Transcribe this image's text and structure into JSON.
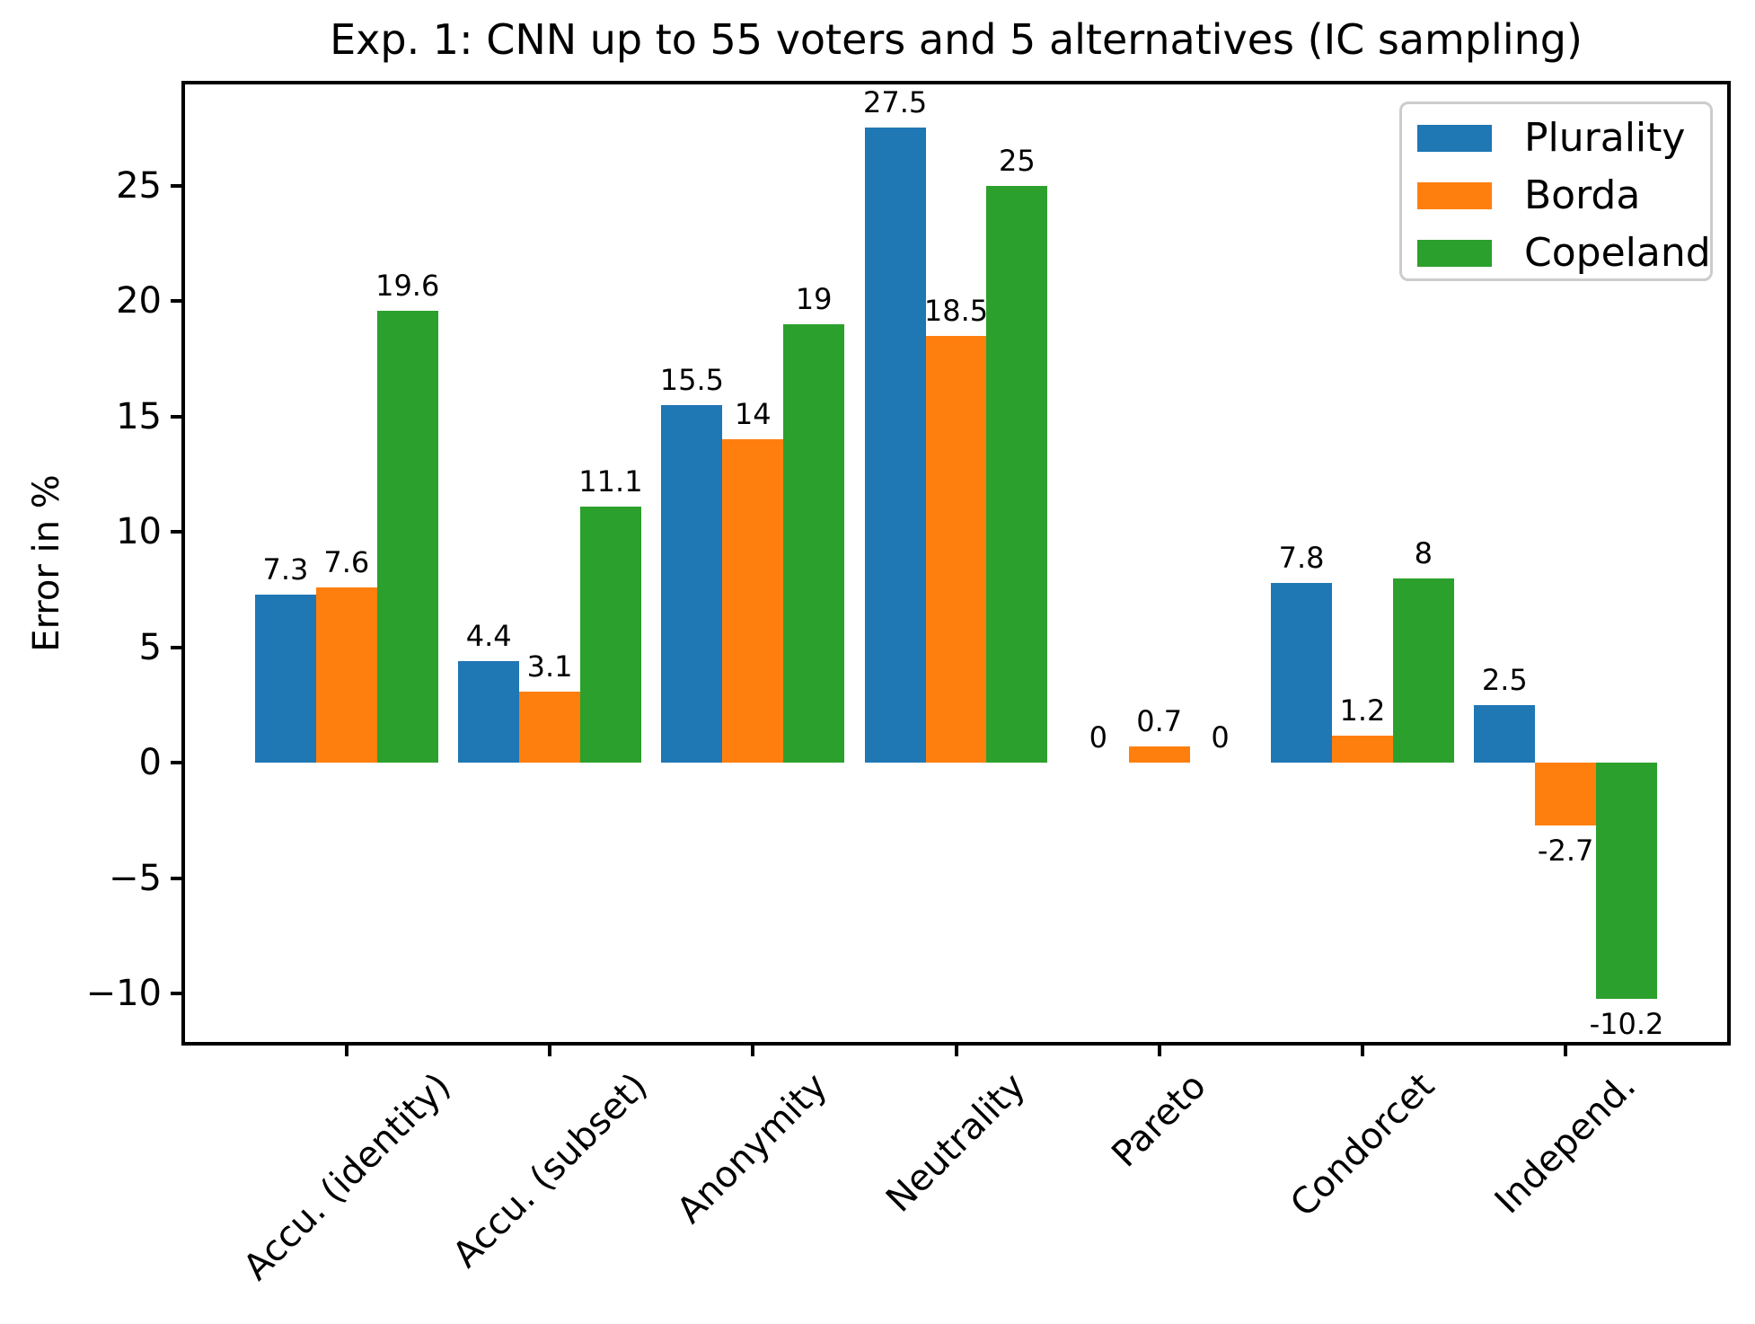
{
  "chart_data": {
    "type": "bar",
    "title": "Exp. 1: CNN up to 55 voters and 5 alternatives (IC sampling)",
    "ylabel": "Error in %",
    "xlabel": "",
    "categories": [
      "Accu. (identity)",
      "Accu. (subset)",
      "Anonymity",
      "Neutrality",
      "Pareto",
      "Condorcet",
      "Independ."
    ],
    "series": [
      {
        "name": "Plurality",
        "color": "#1f77b4",
        "values": [
          7.3,
          4.4,
          15.5,
          27.5,
          0,
          7.8,
          2.5
        ],
        "labels": [
          "7.3",
          "4.4",
          "15.5",
          "27.5",
          "0",
          "7.8",
          "2.5"
        ]
      },
      {
        "name": "Borda",
        "color": "#ff7f0e",
        "values": [
          7.6,
          3.1,
          14,
          18.5,
          0.7,
          1.2,
          -2.7
        ],
        "labels": [
          "7.6",
          "3.1",
          "14",
          "18.5",
          "0.7",
          "1.2",
          "-2.7"
        ]
      },
      {
        "name": "Copeland",
        "color": "#2ca02c",
        "values": [
          19.6,
          11.1,
          19,
          25,
          0,
          8,
          -10.2
        ],
        "labels": [
          "19.6",
          "11.1",
          "19",
          "25",
          "0",
          "8",
          "-10.2"
        ]
      }
    ],
    "yticks": [
      {
        "label": "25",
        "value": 25
      },
      {
        "label": "20",
        "value": 20
      },
      {
        "label": "15",
        "value": 15
      },
      {
        "label": "10",
        "value": 10
      },
      {
        "label": "5",
        "value": 5
      },
      {
        "label": "0",
        "value": 0
      },
      {
        "label": "−5",
        "value": -5
      },
      {
        "label": "−10",
        "value": -10
      }
    ],
    "ylim": [
      -12.085,
      29.385
    ],
    "grid": false,
    "legend_position": "upper right",
    "bar_group_width": 0.9,
    "colors": {
      "background": "#ffffff",
      "axis": "#000000",
      "text": "#000000",
      "legend_border": "#cccccc"
    }
  }
}
